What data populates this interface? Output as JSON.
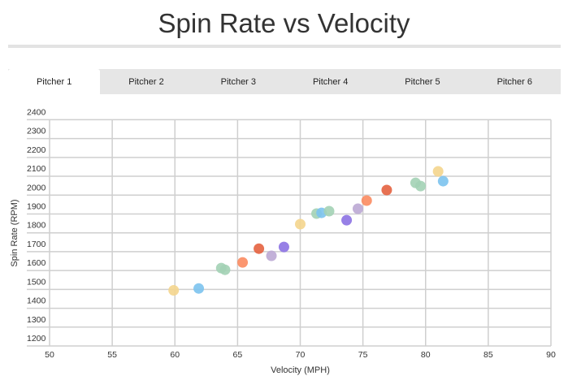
{
  "tabs": [
    "Pitcher 1",
    "Pitcher 2",
    "Pitcher 3",
    "Pitcher 4",
    "Pitcher 5",
    "Pitcher 6"
  ],
  "active_tab": "Pitcher 1",
  "chart_data": {
    "type": "scatter",
    "title": "Spin Rate vs Velocity",
    "xlabel": "Velocity (MPH)",
    "ylabel": "Spin Rate (RPM)",
    "xlim": [
      50,
      90
    ],
    "ylim": [
      1200,
      2400
    ],
    "xticks": [
      50,
      55,
      60,
      65,
      70,
      75,
      80,
      85,
      90
    ],
    "yticks": [
      1200,
      1300,
      1400,
      1500,
      1600,
      1700,
      1800,
      1900,
      2000,
      2100,
      2200,
      2300,
      2400
    ],
    "grid": true,
    "points": [
      {
        "x": 59.9,
        "y": 1495,
        "color": "#f4d58d"
      },
      {
        "x": 61.9,
        "y": 1505,
        "color": "#7cc3ee"
      },
      {
        "x": 63.7,
        "y": 1613,
        "color": "#a3d1b5"
      },
      {
        "x": 64.0,
        "y": 1604,
        "color": "#a3d1b5"
      },
      {
        "x": 65.4,
        "y": 1643,
        "color": "#fb8b60"
      },
      {
        "x": 66.7,
        "y": 1716,
        "color": "#e4623f"
      },
      {
        "x": 67.7,
        "y": 1678,
        "color": "#bba8d4"
      },
      {
        "x": 68.7,
        "y": 1725,
        "color": "#8c72e3"
      },
      {
        "x": 70.0,
        "y": 1846,
        "color": "#f4d58d"
      },
      {
        "x": 71.3,
        "y": 1902,
        "color": "#a3d1b5"
      },
      {
        "x": 71.7,
        "y": 1906,
        "color": "#7cc3ee"
      },
      {
        "x": 72.3,
        "y": 1915,
        "color": "#a3d1b5"
      },
      {
        "x": 73.7,
        "y": 1867,
        "color": "#8c72e3"
      },
      {
        "x": 74.6,
        "y": 1928,
        "color": "#bba8d4"
      },
      {
        "x": 75.3,
        "y": 1971,
        "color": "#fb8b60"
      },
      {
        "x": 76.9,
        "y": 2027,
        "color": "#e4623f"
      },
      {
        "x": 79.2,
        "y": 2065,
        "color": "#a3d1b5"
      },
      {
        "x": 79.6,
        "y": 2048,
        "color": "#a3d1b5"
      },
      {
        "x": 81.0,
        "y": 2126,
        "color": "#f4d58d"
      },
      {
        "x": 81.4,
        "y": 2074,
        "color": "#7cc3ee"
      }
    ]
  }
}
